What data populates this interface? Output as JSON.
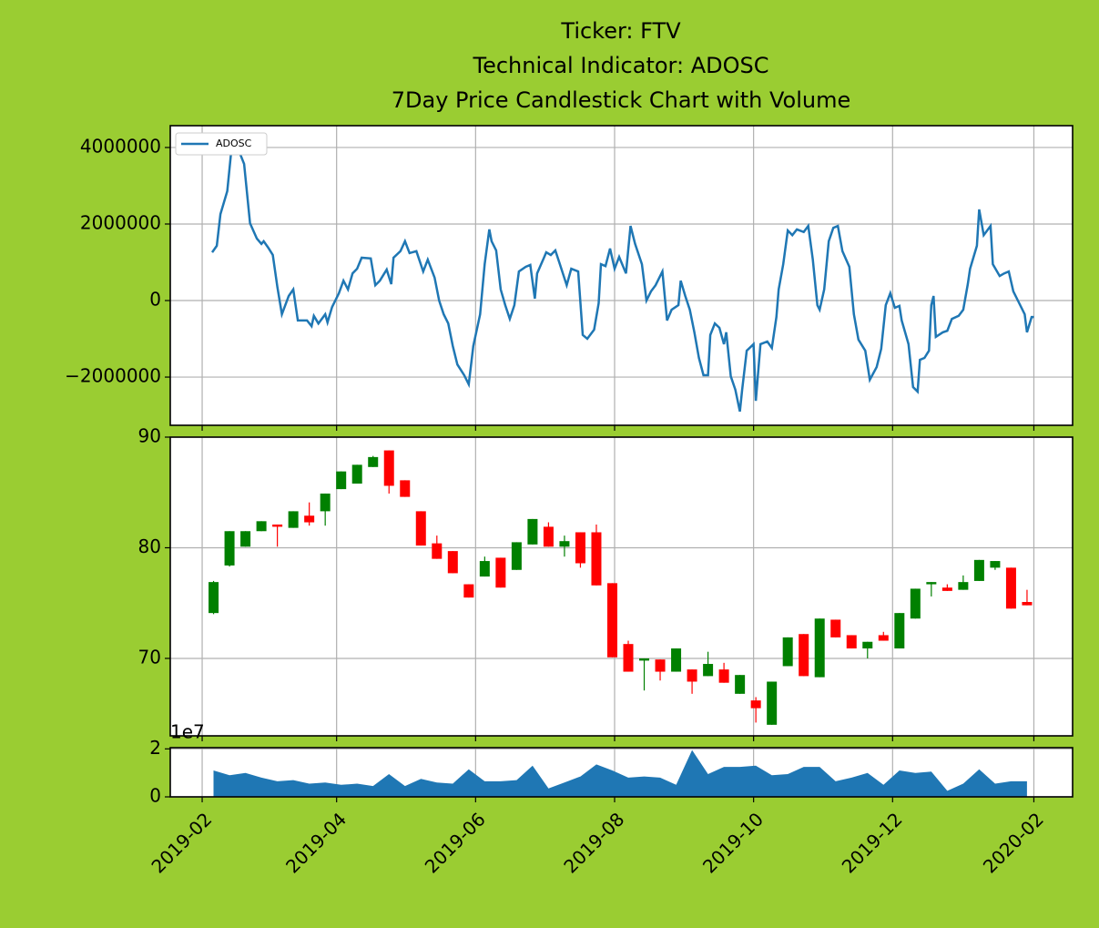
{
  "chart_data": [
    {
      "type": "line",
      "title": [
        "Ticker: FTV",
        "Technical Indicator: ADOSC",
        "7Day Price Candlestick Chart with Volume"
      ],
      "x": [
        4.4,
        6.4,
        8,
        11,
        13,
        14.4,
        16,
        18.4,
        21,
        24,
        26,
        27,
        29,
        31,
        33,
        35,
        38,
        40,
        42,
        46,
        48,
        49,
        51,
        54,
        55,
        57,
        60,
        62,
        64,
        66,
        68,
        70,
        74,
        76,
        78,
        81,
        83,
        84,
        87,
        89,
        91,
        94,
        97,
        99,
        102,
        104,
        106,
        108,
        110,
        112,
        115,
        117,
        119,
        122,
        124,
        126,
        127,
        129,
        131,
        133,
        135,
        137,
        139,
        142,
        144,
        146,
        147,
        150,
        151,
        153,
        155,
        157,
        160,
        162,
        165,
        167,
        169,
        172,
        174,
        175,
        177,
        179,
        181,
        183,
        186,
        188,
        190,
        193,
        195,
        197,
        199,
        202,
        204,
        206,
        209,
        210,
        212,
        214,
        216,
        218,
        220,
        222,
        223,
        225,
        227,
        229,
        230,
        232,
        234,
        236,
        237,
        239,
        242,
        243,
        245,
        248,
        250,
        252,
        253,
        255,
        257,
        259,
        261,
        264,
        266,
        268,
        270,
        271,
        273,
        275,
        277,
        279,
        281,
        284,
        286,
        288,
        291,
        293,
        296,
        298,
        300,
        302,
        304,
        306,
        307,
        310,
        312,
        314,
        315,
        317,
        319,
        320,
        321,
        322,
        325,
        327,
        329,
        332,
        334,
        336,
        337,
        340,
        341,
        343,
        346,
        347,
        350,
        352,
        354,
        356,
        358,
        361,
        362,
        364,
        365
      ],
      "series": [
        {
          "name": "ADOSC",
          "color": "#1f77b4",
          "values": [
            1260000,
            1430000,
            2260000,
            2860000,
            4050000,
            4170000,
            3930000,
            3570000,
            2020000,
            1620000,
            1480000,
            1550000,
            1380000,
            1190000,
            360000,
            -360000,
            120000,
            290000,
            -520000,
            -520000,
            -670000,
            -400000,
            -600000,
            -360000,
            -570000,
            -170000,
            190000,
            520000,
            290000,
            710000,
            830000,
            1120000,
            1100000,
            400000,
            520000,
            810000,
            430000,
            1120000,
            1290000,
            1550000,
            1240000,
            1290000,
            760000,
            1070000,
            600000,
            0,
            -360000,
            -600000,
            -1190000,
            -1670000,
            -1950000,
            -2190000,
            -1190000,
            -360000,
            950000,
            1860000,
            1550000,
            1310000,
            290000,
            -120000,
            -480000,
            -120000,
            760000,
            880000,
            930000,
            50000,
            710000,
            1120000,
            1260000,
            1190000,
            1310000,
            950000,
            400000,
            830000,
            760000,
            -900000,
            -1000000,
            -760000,
            -70000,
            950000,
            900000,
            1360000,
            830000,
            1140000,
            710000,
            1950000,
            1480000,
            950000,
            0,
            240000,
            400000,
            760000,
            -520000,
            -240000,
            -120000,
            520000,
            120000,
            -240000,
            -830000,
            -1500000,
            -1950000,
            -1950000,
            -900000,
            -600000,
            -710000,
            -1140000,
            -830000,
            -1980000,
            -2330000,
            -2900000,
            -2330000,
            -1310000,
            -1140000,
            -2620000,
            -1140000,
            -1070000,
            -1240000,
            -430000,
            290000,
            950000,
            1830000,
            1710000,
            1860000,
            1790000,
            1950000,
            1070000,
            -120000,
            -240000,
            290000,
            1550000,
            1900000,
            1950000,
            1290000,
            880000,
            -360000,
            -1020000,
            -1310000,
            -2070000,
            -1740000,
            -1260000,
            -120000,
            190000,
            -190000,
            -140000,
            -520000,
            -1140000,
            -2260000,
            -2380000,
            -1550000,
            -1500000,
            -1310000,
            -120000,
            120000,
            -950000,
            -830000,
            -790000,
            -480000,
            -400000,
            -240000,
            430000,
            830000,
            1430000,
            2380000,
            1710000,
            1950000,
            950000,
            640000,
            710000,
            760000,
            240000,
            0,
            -360000,
            -830000,
            -430000,
            -430000
          ]
        }
      ],
      "ylim": [
        -3260000,
        4570000
      ],
      "yticks": [
        {
          "value": -2000000,
          "label": "−2000000"
        },
        0,
        2000000,
        4000000
      ],
      "grid": true,
      "legend": "upper left"
    },
    {
      "type": "candlestick",
      "x": [
        5,
        12,
        19,
        26,
        33,
        40,
        47,
        54,
        61,
        68,
        75,
        82,
        89,
        96,
        103,
        110,
        117,
        124,
        131,
        138,
        145,
        152,
        159,
        166,
        173,
        180,
        187,
        194,
        201,
        208,
        215,
        222,
        229,
        236,
        243,
        250,
        257,
        264,
        271,
        278,
        285,
        292,
        299,
        306,
        313,
        320,
        327,
        334,
        341,
        348,
        355,
        362
      ],
      "open": [
        74.1,
        78.4,
        80.1,
        81.5,
        82.1,
        81.8,
        82.9,
        83.3,
        85.3,
        85.8,
        87.3,
        88.8,
        86.1,
        83.3,
        80.4,
        79.7,
        76.7,
        77.4,
        79.1,
        78.0,
        80.3,
        81.9,
        80.1,
        81.4,
        81.4,
        76.8,
        71.3,
        69.8,
        69.9,
        68.8,
        69.0,
        68.4,
        69.0,
        66.8,
        66.2,
        64.0,
        69.3,
        72.2,
        68.3,
        73.5,
        72.1,
        70.9,
        72.1,
        70.9,
        73.6,
        76.7,
        76.4,
        76.2,
        77.0,
        78.2,
        78.2,
        75.1
      ],
      "high": [
        77.0,
        81.5,
        81.5,
        82.4,
        82.1,
        83.3,
        84.1,
        84.9,
        86.9,
        87.5,
        88.3,
        88.8,
        86.1,
        83.3,
        81.1,
        79.7,
        76.7,
        79.2,
        79.1,
        80.5,
        82.6,
        82.3,
        81.1,
        81.4,
        82.1,
        76.8,
        71.6,
        70.0,
        69.9,
        70.9,
        69.0,
        70.6,
        69.6,
        68.5,
        66.5,
        67.9,
        71.9,
        72.2,
        73.6,
        73.5,
        72.1,
        71.5,
        72.4,
        74.1,
        76.3,
        76.9,
        76.7,
        77.5,
        78.9,
        78.8,
        78.2,
        76.2
      ],
      "low": [
        74.0,
        78.3,
        80.1,
        81.5,
        80.1,
        81.8,
        82.0,
        82.0,
        85.3,
        85.8,
        87.3,
        84.9,
        84.6,
        80.2,
        79.0,
        77.7,
        75.5,
        77.4,
        76.4,
        78.0,
        80.3,
        80.1,
        79.2,
        78.2,
        76.6,
        70.1,
        68.8,
        67.1,
        68.0,
        68.8,
        66.8,
        68.4,
        67.8,
        66.8,
        64.2,
        64.0,
        69.3,
        68.4,
        68.3,
        71.9,
        70.9,
        70.0,
        71.6,
        70.9,
        73.6,
        75.6,
        76.1,
        76.2,
        77.0,
        78.0,
        74.5,
        74.8
      ],
      "close": [
        76.9,
        81.5,
        81.5,
        82.4,
        81.9,
        83.3,
        82.3,
        84.9,
        86.9,
        87.5,
        88.2,
        85.6,
        84.6,
        80.2,
        79.0,
        77.7,
        75.5,
        78.8,
        76.4,
        80.5,
        82.6,
        80.1,
        80.6,
        78.6,
        76.6,
        70.1,
        68.8,
        70.0,
        68.8,
        70.9,
        67.9,
        69.5,
        67.8,
        68.5,
        65.5,
        67.9,
        71.9,
        68.4,
        73.6,
        71.9,
        70.9,
        71.5,
        71.6,
        74.1,
        76.3,
        76.9,
        76.1,
        76.9,
        78.9,
        78.8,
        74.5,
        74.8
      ],
      "up_color": "#008000",
      "down_color": "#ff0000",
      "ylim": [
        63,
        90
      ],
      "yticks": [
        70,
        80,
        90
      ],
      "grid": true
    },
    {
      "type": "area",
      "x": [
        5,
        12,
        19,
        26,
        33,
        40,
        47,
        54,
        61,
        68,
        75,
        82,
        89,
        96,
        103,
        110,
        117,
        124,
        131,
        138,
        145,
        152,
        159,
        166,
        173,
        180,
        187,
        194,
        201,
        208,
        215,
        222,
        229,
        236,
        243,
        250,
        257,
        264,
        271,
        278,
        285,
        292,
        299,
        306,
        313,
        320,
        327,
        334,
        341,
        348,
        355,
        362
      ],
      "values": [
        1.1,
        0.9,
        1.0,
        0.8,
        0.65,
        0.7,
        0.55,
        0.6,
        0.5,
        0.55,
        0.45,
        0.95,
        0.45,
        0.75,
        0.6,
        0.55,
        1.15,
        0.65,
        0.65,
        0.7,
        1.3,
        0.35,
        0.6,
        0.85,
        1.35,
        1.1,
        0.8,
        0.85,
        0.8,
        0.5,
        1.95,
        0.95,
        1.25,
        1.25,
        1.3,
        0.9,
        0.95,
        1.25,
        1.25,
        0.65,
        0.8,
        1.0,
        0.5,
        1.1,
        1.0,
        1.05,
        0.25,
        0.55,
        1.15,
        0.55,
        0.65,
        0.65
      ],
      "color": "#1f77b4",
      "ylim": [
        0,
        2.05
      ],
      "yticks": [
        0,
        2
      ],
      "offset_label": "1e7",
      "grid": true,
      "xlim": [
        -14,
        382
      ],
      "xticks": [
        {
          "value": 0,
          "label": "2019-02"
        },
        {
          "value": 59,
          "label": "2019-04"
        },
        {
          "value": 120,
          "label": "2019-06"
        },
        {
          "value": 181,
          "label": "2019-08"
        },
        {
          "value": 242,
          "label": "2019-10"
        },
        {
          "value": 303,
          "label": "2019-12"
        },
        {
          "value": 365,
          "label": "2020-02"
        }
      ]
    }
  ]
}
